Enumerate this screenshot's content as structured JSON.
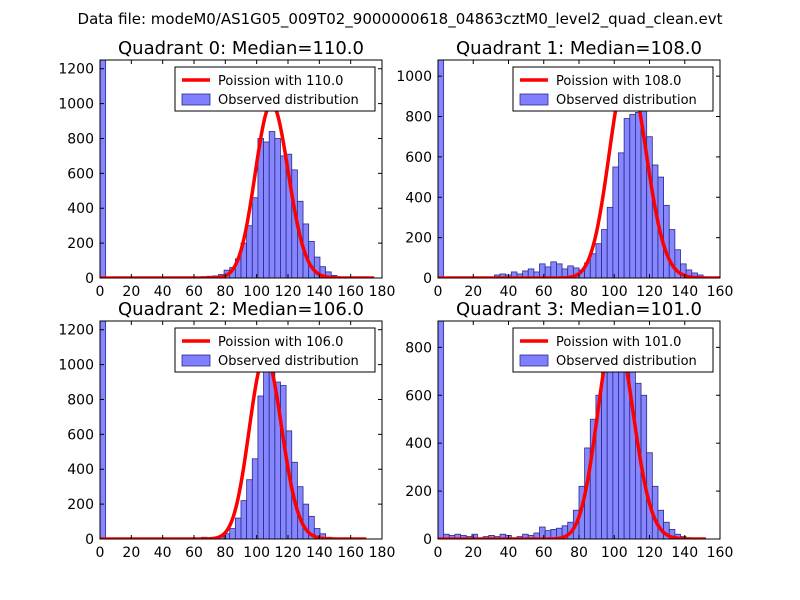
{
  "figure": {
    "suptitle": "Data file: modeM0/AS1G05_009T02_9000000618_04863cztM0_level2_quad_clean.evt"
  },
  "colors": {
    "poisson": "#ff0000",
    "hist_fill": "#7f7fff",
    "hist_edge": "#2b2b8a"
  },
  "chart_data": [
    {
      "type": "bar",
      "title": "Quadrant 0: Median=110.0",
      "xlim": [
        0,
        180
      ],
      "ylim": [
        0,
        1250
      ],
      "xticks": [
        0,
        20,
        40,
        60,
        80,
        100,
        120,
        140,
        160,
        180
      ],
      "yticks": [
        0,
        200,
        400,
        600,
        800,
        1000,
        1200
      ],
      "legend": {
        "line_label": "Poission with 110.0",
        "bar_label": "Observed distribution",
        "loc": "upper right"
      },
      "poisson": {
        "mean": 110.0,
        "peak": 1000,
        "x_range": [
          0,
          175
        ]
      },
      "bin_width": 3.6,
      "hist": [
        [
          0,
          1250
        ],
        [
          64.8,
          8
        ],
        [
          68.4,
          10
        ],
        [
          72.0,
          12
        ],
        [
          75.6,
          20
        ],
        [
          79.2,
          45
        ],
        [
          82.8,
          60
        ],
        [
          86.4,
          110
        ],
        [
          90.0,
          200
        ],
        [
          93.6,
          300
        ],
        [
          97.2,
          460
        ],
        [
          100.8,
          800
        ],
        [
          104.4,
          780
        ],
        [
          108.0,
          840
        ],
        [
          111.6,
          800
        ],
        [
          115.2,
          700
        ],
        [
          118.8,
          710
        ],
        [
          122.4,
          620
        ],
        [
          126.0,
          440
        ],
        [
          129.6,
          310
        ],
        [
          133.2,
          210
        ],
        [
          136.8,
          120
        ],
        [
          140.4,
          65
        ],
        [
          144.0,
          35
        ],
        [
          147.6,
          15
        ],
        [
          151.2,
          6
        ]
      ]
    },
    {
      "type": "bar",
      "title": "Quadrant 1: Median=108.0",
      "xlim": [
        0,
        160
      ],
      "ylim": [
        0,
        1080
      ],
      "xticks": [
        0,
        20,
        40,
        60,
        80,
        100,
        120,
        140,
        160
      ],
      "yticks": [
        0,
        200,
        400,
        600,
        800,
        1000
      ],
      "legend": {
        "line_label": "Poission with 108.0",
        "bar_label": "Observed distribution",
        "loc": "upper right"
      },
      "poisson": {
        "mean": 108.0,
        "peak": 1030,
        "x_range": [
          0,
          160
        ]
      },
      "bin_width": 3.2,
      "hist": [
        [
          0,
          1080
        ],
        [
          32.0,
          15
        ],
        [
          35.2,
          20
        ],
        [
          38.4,
          15
        ],
        [
          41.6,
          30
        ],
        [
          44.8,
          20
        ],
        [
          48.0,
          35
        ],
        [
          51.2,
          45
        ],
        [
          54.4,
          30
        ],
        [
          57.6,
          70
        ],
        [
          60.8,
          55
        ],
        [
          64.0,
          80
        ],
        [
          67.2,
          70
        ],
        [
          70.4,
          45
        ],
        [
          73.6,
          60
        ],
        [
          76.8,
          50
        ],
        [
          80.0,
          40
        ],
        [
          83.2,
          75
        ],
        [
          86.4,
          120
        ],
        [
          89.6,
          170
        ],
        [
          92.8,
          240
        ],
        [
          96.0,
          350
        ],
        [
          99.2,
          550
        ],
        [
          102.4,
          620
        ],
        [
          105.6,
          790
        ],
        [
          108.8,
          810
        ],
        [
          112.0,
          820
        ],
        [
          115.2,
          950
        ],
        [
          118.4,
          700
        ],
        [
          121.6,
          560
        ],
        [
          124.8,
          500
        ],
        [
          128.0,
          360
        ],
        [
          131.2,
          240
        ],
        [
          134.4,
          140
        ],
        [
          137.6,
          70
        ],
        [
          140.8,
          40
        ],
        [
          144.0,
          25
        ],
        [
          147.2,
          15
        ]
      ]
    },
    {
      "type": "bar",
      "title": "Quadrant 2: Median=106.0",
      "xlim": [
        0,
        180
      ],
      "ylim": [
        0,
        1250
      ],
      "xticks": [
        0,
        20,
        40,
        60,
        80,
        100,
        120,
        140,
        160,
        180
      ],
      "yticks": [
        0,
        200,
        400,
        600,
        800,
        1000,
        1200
      ],
      "legend": {
        "line_label": "Poission with 106.0",
        "bar_label": "Observed distribution",
        "loc": "upper right"
      },
      "poisson": {
        "mean": 106.0,
        "peak": 1050,
        "x_range": [
          0,
          170
        ]
      },
      "bin_width": 3.6,
      "hist": [
        [
          0,
          1250
        ],
        [
          64.8,
          10
        ],
        [
          68.4,
          5
        ],
        [
          72.0,
          10
        ],
        [
          75.6,
          15
        ],
        [
          79.2,
          30
        ],
        [
          82.8,
          60
        ],
        [
          86.4,
          120
        ],
        [
          90.0,
          220
        ],
        [
          93.6,
          340
        ],
        [
          97.2,
          460
        ],
        [
          100.8,
          820
        ],
        [
          104.4,
          960
        ],
        [
          108.0,
          990
        ],
        [
          111.6,
          900
        ],
        [
          115.2,
          880
        ],
        [
          118.8,
          620
        ],
        [
          122.4,
          440
        ],
        [
          126.0,
          300
        ],
        [
          129.6,
          200
        ],
        [
          133.2,
          130
        ],
        [
          136.8,
          60
        ],
        [
          140.4,
          30
        ],
        [
          144.0,
          10
        ],
        [
          147.6,
          5
        ]
      ]
    },
    {
      "type": "bar",
      "title": "Quadrant 3: Median=101.0",
      "xlim": [
        0,
        160
      ],
      "ylim": [
        0,
        910
      ],
      "xticks": [
        0,
        20,
        40,
        60,
        80,
        100,
        120,
        140,
        160
      ],
      "yticks": [
        0,
        200,
        400,
        600,
        800
      ],
      "legend": {
        "line_label": "Poission with 101.0",
        "bar_label": "Observed distribution",
        "loc": "upper right"
      },
      "poisson": {
        "mean": 101.0,
        "peak": 870,
        "x_range": [
          0,
          152
        ]
      },
      "bin_width": 3.2,
      "hist": [
        [
          0,
          910
        ],
        [
          3.2,
          20
        ],
        [
          6.4,
          15
        ],
        [
          9.6,
          20
        ],
        [
          12.8,
          15
        ],
        [
          16.0,
          10
        ],
        [
          19.2,
          20
        ],
        [
          22.4,
          5
        ],
        [
          25.6,
          10
        ],
        [
          28.8,
          15
        ],
        [
          32.0,
          10
        ],
        [
          35.2,
          20
        ],
        [
          38.4,
          15
        ],
        [
          41.6,
          5
        ],
        [
          44.8,
          10
        ],
        [
          48.0,
          20
        ],
        [
          51.2,
          15
        ],
        [
          54.4,
          25
        ],
        [
          57.6,
          50
        ],
        [
          60.8,
          35
        ],
        [
          64.0,
          40
        ],
        [
          67.2,
          45
        ],
        [
          70.4,
          55
        ],
        [
          73.6,
          70
        ],
        [
          76.8,
          120
        ],
        [
          80.0,
          220
        ],
        [
          83.2,
          380
        ],
        [
          86.4,
          500
        ],
        [
          89.6,
          600
        ],
        [
          92.8,
          820
        ],
        [
          96.0,
          830
        ],
        [
          99.2,
          850
        ],
        [
          102.4,
          800
        ],
        [
          105.6,
          830
        ],
        [
          108.8,
          720
        ],
        [
          112.0,
          650
        ],
        [
          115.2,
          600
        ],
        [
          118.4,
          360
        ],
        [
          121.6,
          220
        ],
        [
          124.8,
          120
        ],
        [
          128.0,
          70
        ],
        [
          131.2,
          40
        ],
        [
          134.4,
          20
        ],
        [
          137.6,
          10
        ]
      ]
    }
  ]
}
